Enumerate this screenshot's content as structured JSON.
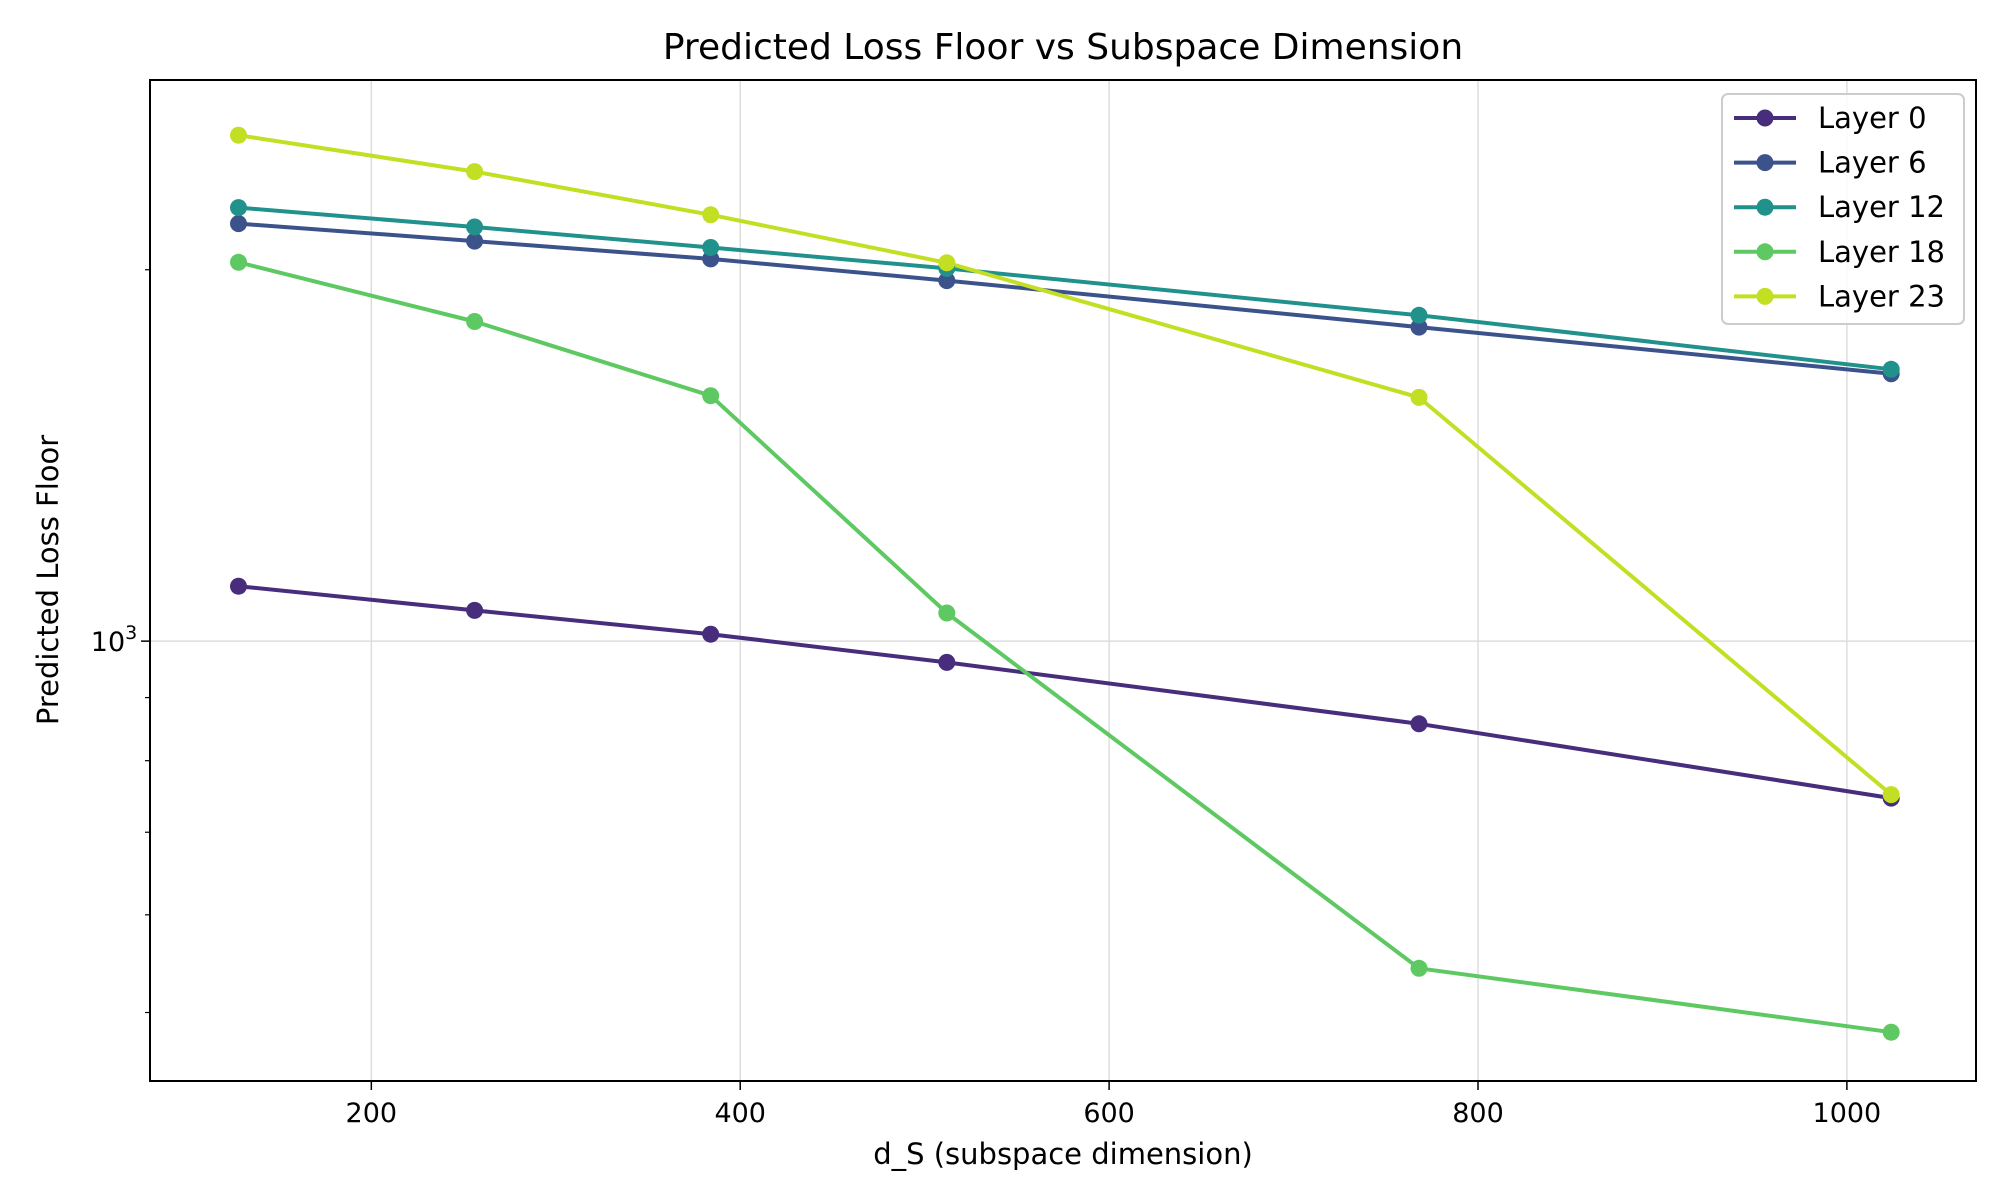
{
  "chart_data": {
    "type": "line",
    "title": "Predicted Loss Floor vs Subspace Dimension",
    "xlabel": "d_S (subspace dimension)",
    "ylabel": "Predicted Loss Floor",
    "y_scale": "log",
    "xlim": [
      80,
      1070
    ],
    "ylim": [
      440,
      2850
    ],
    "x_ticks": [
      200,
      400,
      600,
      800,
      1000
    ],
    "y_ticks": [
      1000
    ],
    "y_tick_labels": {
      "base": "10",
      "exp": "3"
    },
    "grid": true,
    "legend_position": "top-right",
    "x": [
      128,
      256,
      384,
      512,
      768,
      1024
    ],
    "series": [
      {
        "name": "Layer 0",
        "color": "#472d7b",
        "values": [
          1108,
          1059,
          1013,
          961,
          857,
          746
        ]
      },
      {
        "name": "Layer 6",
        "color": "#3b528b",
        "values": [
          2180,
          2110,
          2041,
          1960,
          1797,
          1647
        ]
      },
      {
        "name": "Layer 12",
        "color": "#21918c",
        "values": [
          2246,
          2166,
          2085,
          2005,
          1837,
          1661
        ]
      },
      {
        "name": "Layer 18",
        "color": "#5ec962",
        "values": [
          2028,
          1816,
          1581,
          1054,
          543,
          482
        ]
      },
      {
        "name": "Layer 23",
        "color": "#c2df23",
        "values": [
          2571,
          2402,
          2216,
          2026,
          1576,
          751
        ]
      }
    ]
  }
}
